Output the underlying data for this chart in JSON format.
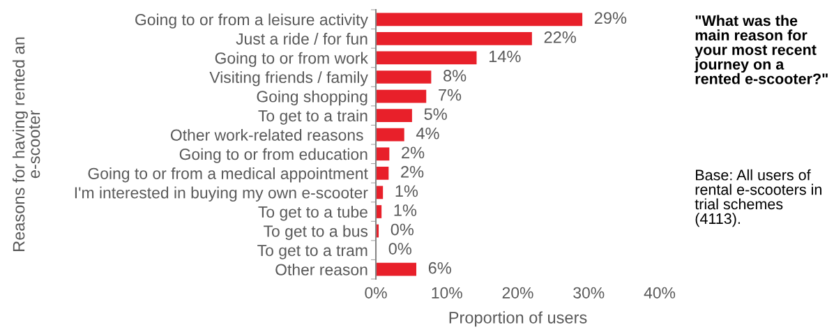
{
  "chart_data": {
    "type": "bar",
    "orientation": "horizontal",
    "categories": [
      "Going to or from a leisure activity",
      "Just a ride / for fun",
      "Going to or from work",
      "Visiting friends / family",
      "Going shopping",
      "To get to a train",
      "Other work-related reasons ",
      "Going to or from education",
      "Going to or from a medical appointment",
      "I'm interested in buying my own e-scooter",
      "To get to a tube",
      "To get to a bus",
      "To get to a tram",
      "Other reason"
    ],
    "values": [
      29.1,
      22.0,
      14.2,
      7.8,
      7.1,
      5.1,
      4.0,
      1.9,
      1.8,
      1.0,
      0.8,
      0.4,
      0.1,
      5.7
    ],
    "value_labels": [
      "29%",
      "22%",
      "14%",
      "8%",
      "7%",
      "5%",
      "4%",
      "2%",
      "2%",
      "1%",
      "1%",
      "0%",
      "0%",
      "6%"
    ],
    "color": "#e8202a",
    "xlim": [
      0,
      40
    ],
    "xticks": [
      {
        "value": 0,
        "label": "0%"
      },
      {
        "value": 10,
        "label": "10%"
      },
      {
        "value": 20,
        "label": "20%"
      },
      {
        "value": 30,
        "label": "30%"
      },
      {
        "value": 40,
        "label": "40%"
      }
    ],
    "xlabel": "Proportion of users",
    "ylabel": "Reasons for having rented an e-scooter",
    "grid": false,
    "annotations": [
      "\"What was the main reason for your most recent journey on a rented e-scooter?\"",
      "Base: All users of rental e-scooters in trial schemes (4113)."
    ]
  }
}
